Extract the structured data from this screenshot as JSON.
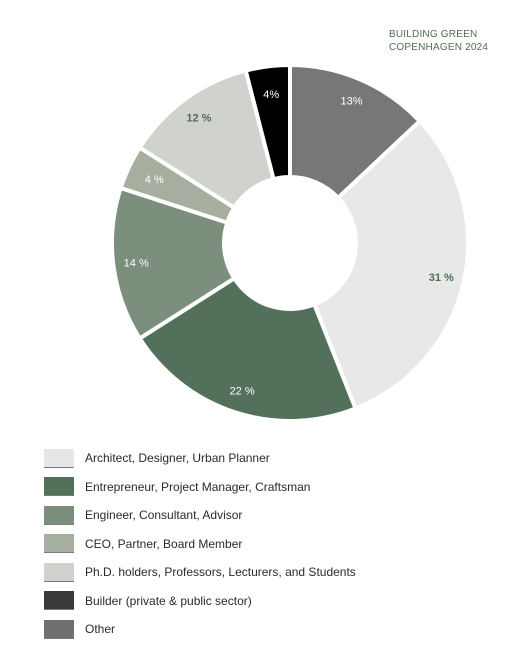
{
  "brand": {
    "line1": "BUILDING GREEN",
    "line2": "COPENHAGEN 2024",
    "color": "#4f6e52"
  },
  "chart_data": {
    "type": "pie",
    "donut": true,
    "title": "",
    "slices": [
      {
        "label": "Other",
        "value": 13,
        "text": "13%",
        "color": "#777777",
        "label_color": "#ffffff"
      },
      {
        "label": "Architect, Designer, Urban Planner",
        "value": 31,
        "text": "31 %",
        "color": "#e8e8e8",
        "label_color": "#4f6e52"
      },
      {
        "label": "Entrepreneur, Project Manager, Craftsman",
        "value": 22,
        "text": "22 %",
        "color": "#52705a",
        "label_color": "#ffffff"
      },
      {
        "label": "Engineer, Consultant, Advisor",
        "value": 14,
        "text": "14 %",
        "color": "#7c8f7d",
        "label_color": "#ffffff"
      },
      {
        "label": "CEO, Partner, Board Member",
        "value": 4,
        "text": "4 %",
        "color": "#a5ae9f",
        "label_color": "#ffffff"
      },
      {
        "label": "Ph.D. holders, Professors, Lecturers, and Students",
        "value": 12,
        "text": "12 %",
        "color": "#d0d2cd",
        "label_color": "#4f6e52"
      },
      {
        "label": "Builder (private & public sector)",
        "value": 4,
        "text": "4%",
        "color": "#000000",
        "label_color": "#ffffff"
      }
    ],
    "legend_placement": "bottom-left"
  },
  "legend": [
    {
      "label": "Architect, Designer, Urban Planner",
      "color": "#e6e6e6"
    },
    {
      "label": "Entrepreneur, Project Manager, Craftsman",
      "color": "#52705a"
    },
    {
      "label": "Engineer, Consultant, Advisor",
      "color": "#7c8f7d"
    },
    {
      "label": "CEO, Partner, Board Member",
      "color": "#a5ae9f"
    },
    {
      "label": "Ph.D. holders, Professors, Lecturers, and Students",
      "color": "#d0d2cd"
    },
    {
      "label": "Builder (private & public sector)",
      "color": "#3a3a3a"
    },
    {
      "label": "Other",
      "color": "#6f6f6f"
    }
  ]
}
